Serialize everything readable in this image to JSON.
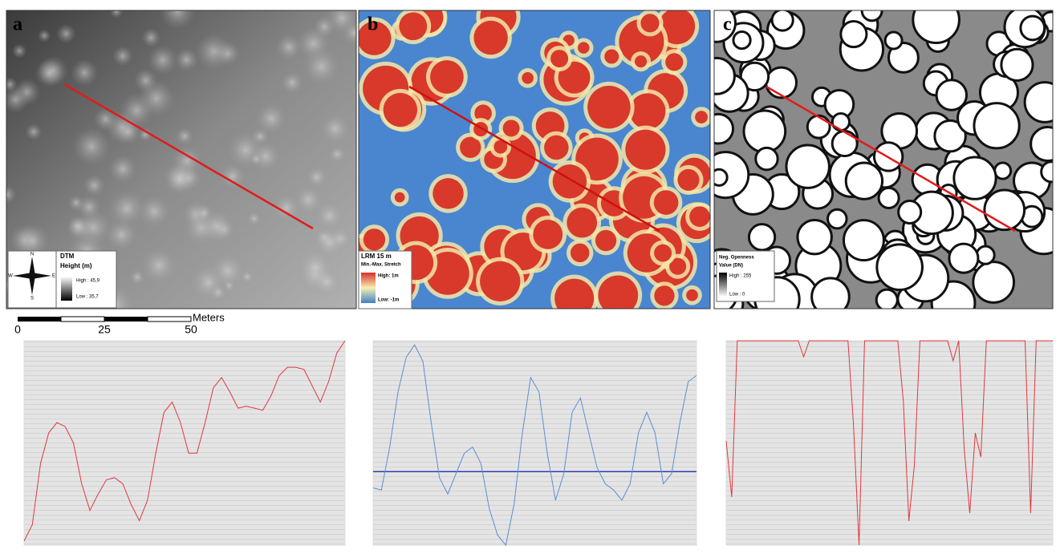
{
  "panels": [
    {
      "letter": "a",
      "legend": {
        "title": "DTM",
        "subtitle": "Height (m)",
        "high": "High : 45,9",
        "low": "Low : 35,7"
      },
      "compass": [
        "N",
        "E",
        "S",
        "W"
      ]
    },
    {
      "letter": "b",
      "legend": {
        "title": "LRM 15 m",
        "subtitle": "Min.-Max. Stretch",
        "high": "High: 1m",
        "low": "Low: -1m"
      }
    },
    {
      "letter": "c",
      "legend": {
        "title": "Neg. Openness",
        "subtitle": "Value (DN)",
        "high": "High : 255",
        "low": "Low : 0"
      }
    }
  ],
  "scale_bar": {
    "labels": [
      "0",
      "25",
      "50"
    ],
    "unit": "Meters"
  },
  "chart_data": [
    {
      "type": "line",
      "ylim": [
        0,
        100
      ],
      "grid": true,
      "series": [
        {
          "color": "#e0393e",
          "values": [
            2,
            10,
            40,
            55,
            60,
            58,
            50,
            30,
            17,
            25,
            32,
            33,
            30,
            20,
            12,
            22,
            45,
            65,
            70,
            60,
            45,
            45,
            60,
            77,
            82,
            75,
            67,
            68,
            67,
            66,
            73,
            83,
            87,
            87,
            86,
            78,
            70,
            80,
            94,
            100
          ]
        }
      ]
    },
    {
      "type": "line",
      "ylim": [
        0,
        100
      ],
      "grid": true,
      "reference_line": 36,
      "reference_color": "#2d3fa8",
      "series": [
        {
          "color": "#5b8fd6",
          "values": [
            28,
            27,
            48,
            75,
            92,
            98,
            90,
            60,
            33,
            25,
            35,
            45,
            48,
            40,
            18,
            5,
            0,
            20,
            55,
            82,
            75,
            45,
            22,
            35,
            65,
            72,
            55,
            38,
            30,
            27,
            22,
            30,
            55,
            65,
            55,
            30,
            35,
            60,
            80,
            83
          ]
        }
      ]
    },
    {
      "type": "line",
      "ylim": [
        0,
        255
      ],
      "grid": true,
      "series": [
        {
          "color": "#e0393e",
          "values": [
            130,
            60,
            255,
            255,
            255,
            255,
            255,
            255,
            255,
            255,
            255,
            255,
            255,
            255,
            235,
            255,
            255,
            255,
            255,
            255,
            255,
            255,
            255,
            150,
            0,
            255,
            255,
            255,
            255,
            255,
            255,
            255,
            180,
            30,
            100,
            255,
            255,
            255,
            255,
            255,
            255,
            230,
            255,
            120,
            40,
            140,
            110,
            255,
            255,
            255,
            255,
            255,
            255,
            255,
            255,
            40,
            255,
            255,
            255,
            255
          ]
        }
      ]
    }
  ]
}
